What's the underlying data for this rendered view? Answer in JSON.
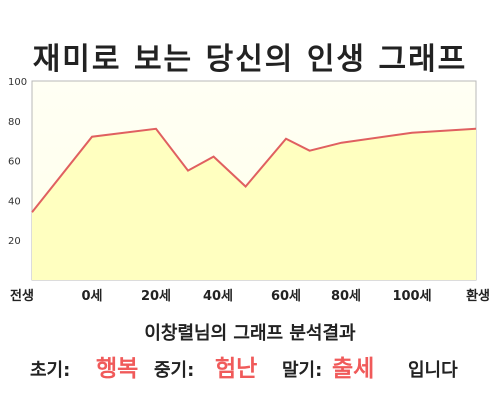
{
  "title": "재미로 보는 당신의 인생 그래프",
  "chart_data": {
    "type": "area",
    "x_categories": [
      "전생",
      "0세",
      "20세",
      "40세",
      "60세",
      "80세",
      "100세",
      "환생"
    ],
    "points": [
      {
        "x": "전생",
        "y": 34
      },
      {
        "x": "0세",
        "y": 72
      },
      {
        "x": "20세",
        "y": 76
      },
      {
        "x": 30,
        "y": 55
      },
      {
        "x": 38,
        "y": 62
      },
      {
        "x": 48,
        "y": 47
      },
      {
        "x": "60세",
        "y": 71
      },
      {
        "x": 68,
        "y": 65
      },
      {
        "x": 78,
        "y": 69
      },
      {
        "x": "100세",
        "y": 74
      },
      {
        "x": "환생",
        "y": 76
      }
    ],
    "y_ticks": [
      20,
      40,
      60,
      80,
      100
    ],
    "ylim": [
      0,
      100
    ],
    "grid": false,
    "line_color": "#e06060",
    "fill_color": "#ffffc0"
  },
  "summary": "이창렬님의 그래프 분석결과",
  "result": {
    "early_label": "초기:",
    "early_value": "행복",
    "mid_label": "중기:",
    "mid_value": "험난",
    "late_label": "말기:",
    "late_value": "출세",
    "ending": "입니다"
  }
}
